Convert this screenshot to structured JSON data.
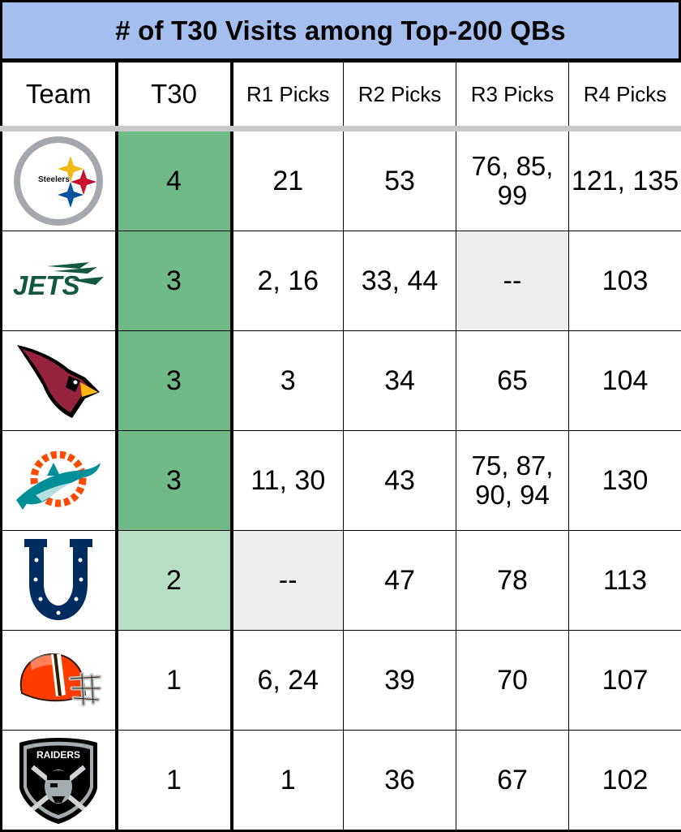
{
  "title": "# of T30 Visits among Top-200 QBs",
  "headers": {
    "team": "Team",
    "t30": "T30",
    "r1": "R1 Picks",
    "r2": "R2 Picks",
    "r3": "R3 Picks",
    "r4": "R4 Picks"
  },
  "colors": {
    "title_bg": "#a4bfee",
    "t30_high": "#6fba87",
    "t30_mid": "#b7dfc6",
    "empty_cell": "#eeeeee"
  },
  "rows": [
    {
      "logo": "steelers-logo-icon",
      "logo_text": "Steelers",
      "t30": "4",
      "r1": "21",
      "r2": "53",
      "r3": "76, 85, 99",
      "r4": "121, 135"
    },
    {
      "logo": "jets-logo-icon",
      "logo_text": "JETS",
      "t30": "3",
      "r1": "2, 16",
      "r2": "33, 44",
      "r3": "--",
      "r4": "103"
    },
    {
      "logo": "cardinals-logo-icon",
      "t30": "3",
      "r1": "3",
      "r2": "34",
      "r3": "65",
      "r4": "104"
    },
    {
      "logo": "dolphins-logo-icon",
      "t30": "3",
      "r1": "11, 30",
      "r2": "43",
      "r3": "75, 87, 90, 94",
      "r4": "130"
    },
    {
      "logo": "colts-logo-icon",
      "t30": "2",
      "r1": "--",
      "r2": "47",
      "r3": "78",
      "r4": "113"
    },
    {
      "logo": "browns-logo-icon",
      "t30": "1",
      "r1": "6, 24",
      "r2": "39",
      "r3": "70",
      "r4": "107"
    },
    {
      "logo": "raiders-logo-icon",
      "logo_text": "RAIDERS",
      "t30": "1",
      "r1": "1",
      "r2": "36",
      "r3": "67",
      "r4": "102"
    }
  ]
}
